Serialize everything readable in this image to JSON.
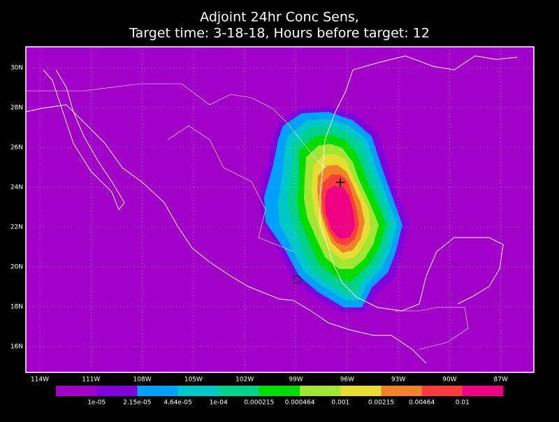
{
  "title": [
    "Adjoint 24hr Conc Sens,",
    "Target time: 3-18-18, Hours before target: 12"
  ],
  "map": {
    "lat_labels": [
      "30N",
      "28N",
      "26N",
      "24N",
      "22N",
      "20N",
      "18N",
      "16N"
    ],
    "lon_labels": [
      "114W",
      "111W",
      "108W",
      "105W",
      "102W",
      "99W",
      "96W",
      "93W",
      "90W",
      "87W"
    ]
  },
  "colorbar": {
    "labels": [
      "1e-05",
      "2.15e-05",
      "4.64e-05",
      "1e-04",
      "0.000215",
      "0.000464",
      "0.001",
      "0.00215",
      "0.00464",
      "0.01"
    ],
    "colors": [
      "#a000c8",
      "#8200dc",
      "#00a0ff",
      "#00c8c8",
      "#00d28c",
      "#00dc00",
      "#a0e632",
      "#e6dc32",
      "#f08228",
      "#fa3c3c",
      "#f00082"
    ]
  }
}
